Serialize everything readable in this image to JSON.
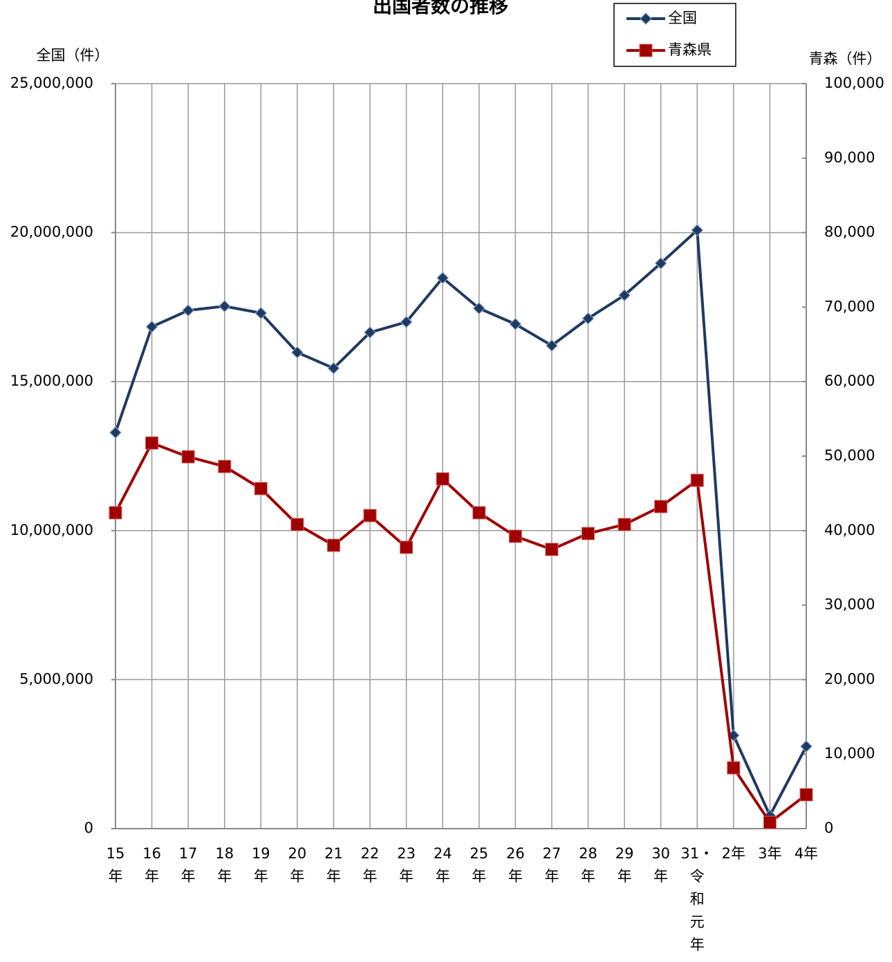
{
  "chart_data": {
    "type": "line",
    "title": "出国者数の推移",
    "y_label": "全国（件）",
    "y2_label": "青森（件）",
    "categories": [
      "15年",
      "16年",
      "17年",
      "18年",
      "19年",
      "20年",
      "21年",
      "22年",
      "23年",
      "24年",
      "25年",
      "26年",
      "27年",
      "28年",
      "29年",
      "30年",
      "31・令和元年",
      "2年",
      "3年",
      "4年"
    ],
    "series": [
      {
        "name": "全国",
        "color": "#1f3a60",
        "marker": "diamond",
        "values": [
          13290000,
          16840000,
          17390000,
          17530000,
          17300000,
          15980000,
          15450000,
          16650000,
          17000000,
          18480000,
          17460000,
          16930000,
          16210000,
          17120000,
          17900000,
          18970000,
          20080000,
          3130000,
          440000,
          2760000
        ]
      },
      {
        "name": "青森県",
        "color": "#a00000",
        "marker": "square",
        "axis": "y2",
        "values": [
          42400,
          51760,
          49910,
          48610,
          45640,
          40820,
          38030,
          42020,
          37760,
          46940,
          42400,
          39240,
          37480,
          39610,
          40820,
          43230,
          46750,
          8160,
          830,
          4550
        ]
      }
    ],
    "ylim": [
      0,
      25000000
    ],
    "yticks": [
      0,
      {
        "value": 5000000,
        "label": "5,000,000"
      },
      {
        "value": 10000000,
        "label": "10,000,000"
      },
      {
        "value": 15000000,
        "label": "15,000,000"
      },
      {
        "value": 20000000,
        "label": "20,000,000"
      },
      {
        "value": 25000000,
        "label": "25,000,000"
      }
    ],
    "y2lim": [
      0,
      100000
    ],
    "y2ticks": [
      0,
      {
        "value": 10000,
        "label": "10,000"
      },
      {
        "value": 20000,
        "label": "20,000"
      },
      {
        "value": 30000,
        "label": "30,000"
      },
      {
        "value": 40000,
        "label": "40,000"
      },
      {
        "value": 50000,
        "label": "50,000"
      },
      {
        "value": 60000,
        "label": "60,000"
      },
      {
        "value": 70000,
        "label": "70,000"
      },
      {
        "value": 80000,
        "label": "80,000"
      },
      {
        "value": 90000,
        "label": "90,000"
      },
      {
        "value": 100000,
        "label": "100,000"
      }
    ],
    "grid": true,
    "legend": "top-right"
  }
}
